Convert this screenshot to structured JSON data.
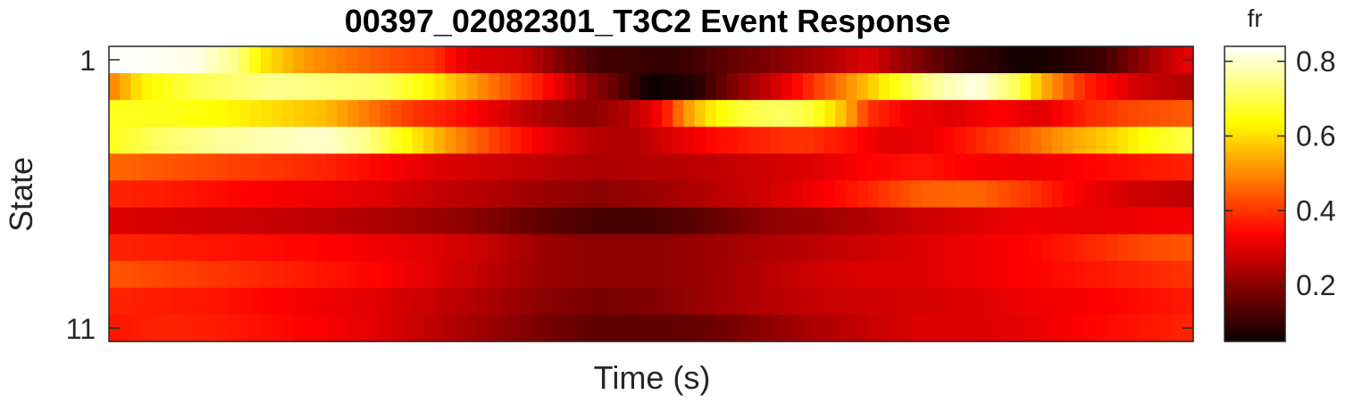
{
  "chart_data": {
    "type": "heatmap",
    "title": "00397_02082301_T3C2 Event Response",
    "xlabel": "Time (s)",
    "ylabel": "State",
    "y_tick_labels": [
      "1",
      "11"
    ],
    "rows": 11,
    "cols": 100,
    "colorbar": {
      "label": "fr",
      "range": [
        0.05,
        0.84
      ],
      "ticks": [
        "0.2",
        "0.4",
        "0.6",
        "0.8"
      ],
      "tick_values": [
        0.2,
        0.4,
        0.6,
        0.8
      ],
      "colormap": "hot"
    },
    "row_profiles": [
      [
        [
          0,
          0.84
        ],
        [
          8,
          0.82
        ],
        [
          12,
          0.74
        ],
        [
          14,
          0.62
        ],
        [
          18,
          0.52
        ],
        [
          25,
          0.44
        ],
        [
          30,
          0.4
        ],
        [
          33,
          0.3
        ],
        [
          38,
          0.28
        ],
        [
          42,
          0.18
        ],
        [
          45,
          0.12
        ],
        [
          52,
          0.1
        ],
        [
          58,
          0.16
        ],
        [
          62,
          0.2
        ],
        [
          66,
          0.24
        ],
        [
          70,
          0.3
        ],
        [
          73,
          0.22
        ],
        [
          78,
          0.12
        ],
        [
          84,
          0.06
        ],
        [
          88,
          0.08
        ],
        [
          92,
          0.12
        ],
        [
          95,
          0.2
        ],
        [
          98,
          0.28
        ],
        [
          100,
          0.32
        ]
      ],
      [
        [
          0,
          0.48
        ],
        [
          3,
          0.62
        ],
        [
          8,
          0.7
        ],
        [
          15,
          0.75
        ],
        [
          25,
          0.72
        ],
        [
          30,
          0.62
        ],
        [
          35,
          0.48
        ],
        [
          40,
          0.36
        ],
        [
          44,
          0.22
        ],
        [
          47,
          0.15
        ],
        [
          50,
          0.05
        ],
        [
          54,
          0.08
        ],
        [
          58,
          0.2
        ],
        [
          62,
          0.3
        ],
        [
          65,
          0.4
        ],
        [
          68,
          0.5
        ],
        [
          72,
          0.64
        ],
        [
          76,
          0.76
        ],
        [
          80,
          0.82
        ],
        [
          84,
          0.7
        ],
        [
          86,
          0.55
        ],
        [
          90,
          0.38
        ],
        [
          95,
          0.28
        ],
        [
          100,
          0.24
        ]
      ],
      [
        [
          0,
          0.66
        ],
        [
          5,
          0.66
        ],
        [
          10,
          0.64
        ],
        [
          15,
          0.6
        ],
        [
          20,
          0.56
        ],
        [
          24,
          0.48
        ],
        [
          28,
          0.4
        ],
        [
          32,
          0.36
        ],
        [
          36,
          0.3
        ],
        [
          40,
          0.24
        ],
        [
          44,
          0.2
        ],
        [
          48,
          0.25
        ],
        [
          51,
          0.34
        ],
        [
          53,
          0.5
        ],
        [
          55,
          0.6
        ],
        [
          58,
          0.68
        ],
        [
          62,
          0.72
        ],
        [
          65,
          0.68
        ],
        [
          68,
          0.55
        ],
        [
          70,
          0.4
        ],
        [
          74,
          0.32
        ],
        [
          78,
          0.3
        ],
        [
          82,
          0.34
        ],
        [
          86,
          0.3
        ],
        [
          90,
          0.38
        ],
        [
          94,
          0.42
        ],
        [
          100,
          0.45
        ]
      ],
      [
        [
          0,
          0.66
        ],
        [
          5,
          0.72
        ],
        [
          10,
          0.76
        ],
        [
          15,
          0.78
        ],
        [
          20,
          0.8
        ],
        [
          24,
          0.74
        ],
        [
          28,
          0.62
        ],
        [
          32,
          0.5
        ],
        [
          36,
          0.4
        ],
        [
          40,
          0.32
        ],
        [
          44,
          0.26
        ],
        [
          48,
          0.24
        ],
        [
          52,
          0.3
        ],
        [
          56,
          0.35
        ],
        [
          60,
          0.38
        ],
        [
          64,
          0.4
        ],
        [
          68,
          0.36
        ],
        [
          72,
          0.3
        ],
        [
          76,
          0.32
        ],
        [
          80,
          0.38
        ],
        [
          84,
          0.44
        ],
        [
          88,
          0.52
        ],
        [
          92,
          0.58
        ],
        [
          96,
          0.65
        ],
        [
          100,
          0.7
        ]
      ],
      [
        [
          0,
          0.46
        ],
        [
          5,
          0.44
        ],
        [
          10,
          0.42
        ],
        [
          15,
          0.4
        ],
        [
          20,
          0.38
        ],
        [
          25,
          0.34
        ],
        [
          30,
          0.3
        ],
        [
          35,
          0.28
        ],
        [
          40,
          0.26
        ],
        [
          45,
          0.24
        ],
        [
          50,
          0.25
        ],
        [
          55,
          0.26
        ],
        [
          60,
          0.28
        ],
        [
          65,
          0.3
        ],
        [
          70,
          0.34
        ],
        [
          75,
          0.36
        ],
        [
          80,
          0.33
        ],
        [
          85,
          0.32
        ],
        [
          90,
          0.34
        ],
        [
          95,
          0.36
        ],
        [
          100,
          0.38
        ]
      ],
      [
        [
          0,
          0.38
        ],
        [
          5,
          0.37
        ],
        [
          10,
          0.35
        ],
        [
          15,
          0.33
        ],
        [
          20,
          0.32
        ],
        [
          25,
          0.3
        ],
        [
          30,
          0.27
        ],
        [
          35,
          0.25
        ],
        [
          40,
          0.22
        ],
        [
          45,
          0.2
        ],
        [
          50,
          0.22
        ],
        [
          55,
          0.25
        ],
        [
          60,
          0.28
        ],
        [
          65,
          0.32
        ],
        [
          70,
          0.38
        ],
        [
          75,
          0.45
        ],
        [
          80,
          0.46
        ],
        [
          85,
          0.4
        ],
        [
          90,
          0.32
        ],
        [
          95,
          0.28
        ],
        [
          100,
          0.26
        ]
      ],
      [
        [
          0,
          0.3
        ],
        [
          5,
          0.29
        ],
        [
          10,
          0.28
        ],
        [
          15,
          0.27
        ],
        [
          20,
          0.26
        ],
        [
          25,
          0.24
        ],
        [
          30,
          0.22
        ],
        [
          35,
          0.19
        ],
        [
          40,
          0.15
        ],
        [
          45,
          0.12
        ],
        [
          50,
          0.12
        ],
        [
          55,
          0.15
        ],
        [
          60,
          0.2
        ],
        [
          65,
          0.22
        ],
        [
          70,
          0.25
        ],
        [
          75,
          0.28
        ],
        [
          80,
          0.3
        ],
        [
          85,
          0.32
        ],
        [
          90,
          0.31
        ],
        [
          95,
          0.32
        ],
        [
          100,
          0.33
        ]
      ],
      [
        [
          0,
          0.38
        ],
        [
          5,
          0.37
        ],
        [
          10,
          0.36
        ],
        [
          15,
          0.35
        ],
        [
          20,
          0.34
        ],
        [
          25,
          0.32
        ],
        [
          30,
          0.3
        ],
        [
          35,
          0.27
        ],
        [
          40,
          0.22
        ],
        [
          45,
          0.2
        ],
        [
          50,
          0.2
        ],
        [
          55,
          0.22
        ],
        [
          60,
          0.24
        ],
        [
          65,
          0.26
        ],
        [
          70,
          0.28
        ],
        [
          75,
          0.3
        ],
        [
          80,
          0.32
        ],
        [
          85,
          0.34
        ],
        [
          90,
          0.38
        ],
        [
          95,
          0.42
        ],
        [
          100,
          0.44
        ]
      ],
      [
        [
          0,
          0.44
        ],
        [
          5,
          0.42
        ],
        [
          10,
          0.4
        ],
        [
          15,
          0.38
        ],
        [
          20,
          0.36
        ],
        [
          25,
          0.34
        ],
        [
          30,
          0.3
        ],
        [
          35,
          0.26
        ],
        [
          40,
          0.22
        ],
        [
          45,
          0.2
        ],
        [
          50,
          0.2
        ],
        [
          55,
          0.22
        ],
        [
          60,
          0.25
        ],
        [
          65,
          0.28
        ],
        [
          70,
          0.3
        ],
        [
          75,
          0.3
        ],
        [
          80,
          0.32
        ],
        [
          85,
          0.34
        ],
        [
          90,
          0.36
        ],
        [
          95,
          0.38
        ],
        [
          100,
          0.4
        ]
      ],
      [
        [
          0,
          0.38
        ],
        [
          5,
          0.37
        ],
        [
          10,
          0.36
        ],
        [
          15,
          0.34
        ],
        [
          20,
          0.32
        ],
        [
          25,
          0.3
        ],
        [
          30,
          0.27
        ],
        [
          35,
          0.24
        ],
        [
          40,
          0.2
        ],
        [
          45,
          0.18
        ],
        [
          50,
          0.19
        ],
        [
          55,
          0.22
        ],
        [
          60,
          0.25
        ],
        [
          65,
          0.27
        ],
        [
          70,
          0.28
        ],
        [
          75,
          0.29
        ],
        [
          80,
          0.3
        ],
        [
          85,
          0.32
        ],
        [
          90,
          0.33
        ],
        [
          95,
          0.35
        ],
        [
          100,
          0.37
        ]
      ],
      [
        [
          0,
          0.36
        ],
        [
          5,
          0.38
        ],
        [
          10,
          0.37
        ],
        [
          15,
          0.35
        ],
        [
          20,
          0.33
        ],
        [
          25,
          0.3
        ],
        [
          30,
          0.26
        ],
        [
          35,
          0.22
        ],
        [
          40,
          0.18
        ],
        [
          45,
          0.15
        ],
        [
          50,
          0.15
        ],
        [
          55,
          0.16
        ],
        [
          60,
          0.2
        ],
        [
          65,
          0.24
        ],
        [
          70,
          0.27
        ],
        [
          75,
          0.3
        ],
        [
          80,
          0.3
        ],
        [
          85,
          0.31
        ],
        [
          90,
          0.34
        ],
        [
          95,
          0.36
        ],
        [
          100,
          0.38
        ]
      ]
    ],
    "grid": false,
    "legend": "none"
  }
}
